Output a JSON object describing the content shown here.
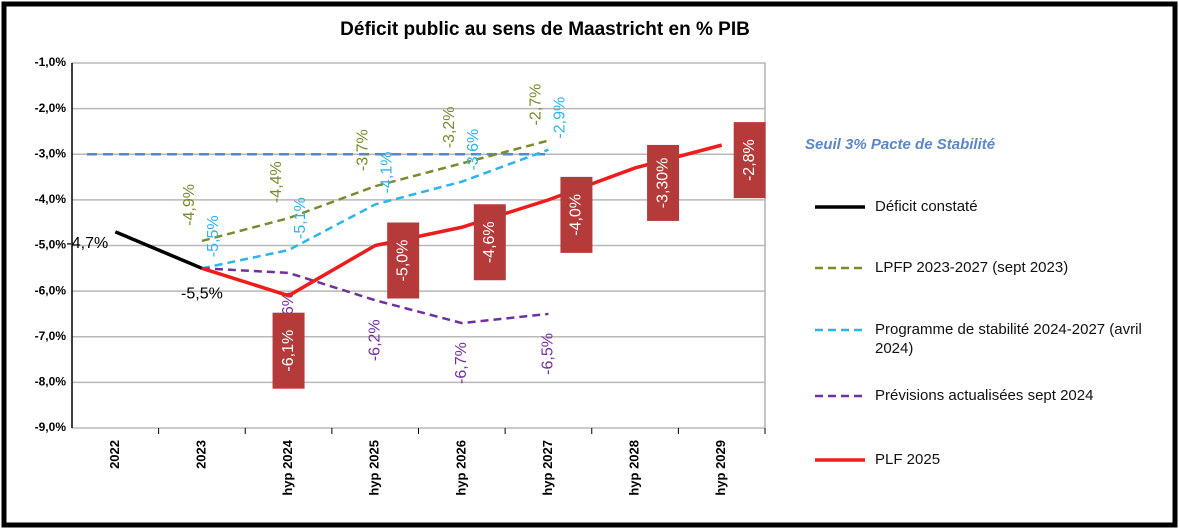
{
  "chart_data": {
    "type": "line",
    "title": "Déficit public au sens de Maastricht en % PIB",
    "categories": [
      "2022",
      "2023",
      "hyp 2024",
      "hyp 2025",
      "hyp 2026",
      "hyp 2027",
      "hyp 2028",
      "hyp 2029"
    ],
    "ylim": [
      -9,
      -1
    ],
    "yticks": [
      {
        "value": -1,
        "label": "-1,0%"
      },
      {
        "value": -2,
        "label": "-2,0%"
      },
      {
        "value": -3,
        "label": "-3,0%"
      },
      {
        "value": -4,
        "label": "-4,0%"
      },
      {
        "value": -5,
        "label": "-5,0%"
      },
      {
        "value": -6,
        "label": "-6,0%"
      },
      {
        "value": -7,
        "label": "-7,0%"
      },
      {
        "value": -8,
        "label": "-8,0%"
      },
      {
        "value": -9,
        "label": "-9,0%"
      }
    ],
    "grid": true,
    "threshold": {
      "value": -3,
      "label": "Seuil 3% Pacte de Stabilité",
      "color": "#5b87c5"
    },
    "series": [
      {
        "name": "Déficit constaté",
        "color": "#000000",
        "dash": false,
        "values": [
          -4.7,
          -5.5,
          null,
          null,
          null,
          null,
          null,
          null
        ],
        "value_labels": [
          "-4,7%",
          "-5,5%",
          null,
          null,
          null,
          null,
          null,
          null
        ]
      },
      {
        "name": "LPFP 2023-2027 (sept 2023)",
        "color": "#7a8a2e",
        "dash": true,
        "values": [
          null,
          -4.9,
          -4.4,
          -3.7,
          -3.2,
          -2.7,
          null,
          null
        ],
        "value_labels": [
          null,
          "-4,9%",
          "-4,4%",
          "-3,7%",
          "-3,2%",
          "-2,7%",
          null,
          null
        ]
      },
      {
        "name": "Programme de stabilité 2024-2027 (avril 2024)",
        "color": "#2cb5e8",
        "dash": true,
        "values": [
          null,
          -5.5,
          -5.1,
          -4.1,
          -3.6,
          -2.9,
          null,
          null
        ],
        "value_labels": [
          null,
          "-5,5%",
          "-5,1%",
          "-4,1%",
          "-3,6%",
          "-2,9%",
          null,
          null
        ]
      },
      {
        "name": "Prévisions actualisées sept 2024",
        "color": "#7030a0",
        "dash": true,
        "values": [
          null,
          -5.5,
          -5.6,
          -6.2,
          -6.7,
          -6.5,
          null,
          null
        ],
        "value_labels": [
          null,
          null,
          "-5,6%",
          "-6,2%",
          "-6,7%",
          "-6,5%",
          null,
          null
        ]
      },
      {
        "name": "PLF 2025",
        "color": "#ee1c1c",
        "dash": false,
        "values": [
          null,
          -5.5,
          -6.1,
          -5.0,
          -4.6,
          -4.0,
          -3.3,
          -2.8
        ],
        "value_labels": [
          null,
          null,
          "-6,1%",
          "-5,0%",
          "-4,6%",
          "-4,0%",
          "-3,30%",
          "-2,8%"
        ]
      }
    ]
  }
}
